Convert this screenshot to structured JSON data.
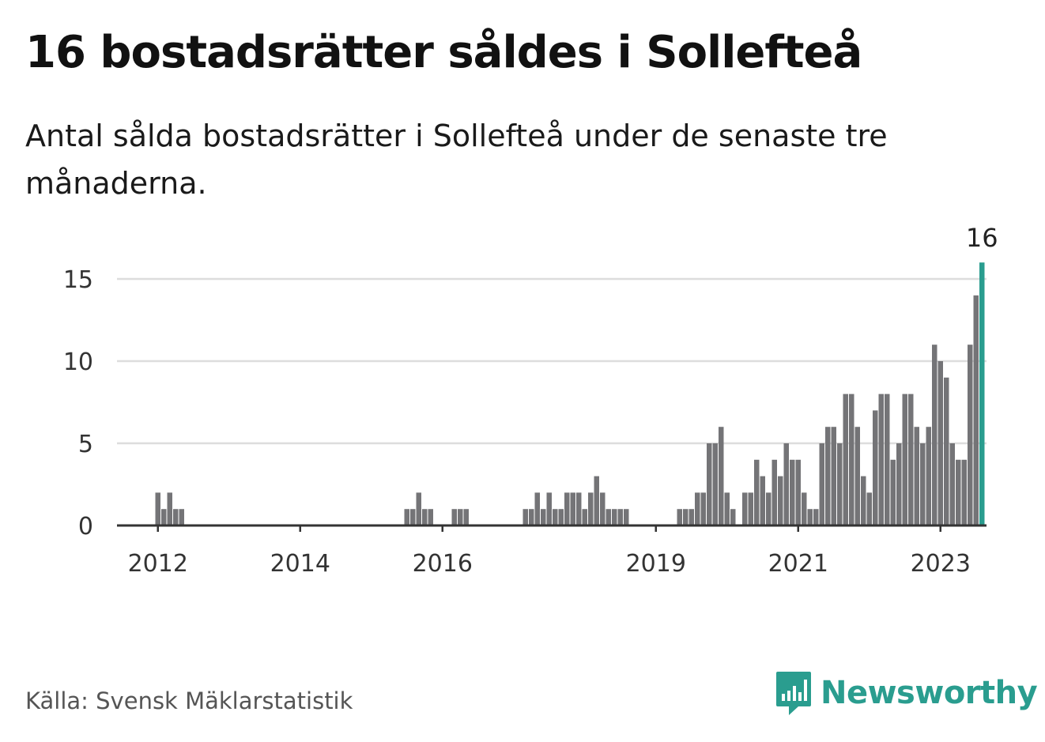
{
  "title": "16 bostadsrätter såldes i Sollefteå",
  "subtitle": "Antal sålda bostadsrätter i Sollefteå under de senaste tre månaderna.",
  "source": "Källa: Svensk Mäklarstatistik",
  "brand": {
    "name": "Newsworthy",
    "icon": "newsworthy-logo-icon",
    "color": "#2a9d8f"
  },
  "chart_data": {
    "type": "bar",
    "x_start": "2012-01",
    "y_ticks": [
      0,
      5,
      10,
      15
    ],
    "ylim": [
      0,
      17
    ],
    "x_tick_labels": [
      {
        "label": "2012",
        "month": "2012-01"
      },
      {
        "label": "2014",
        "month": "2014-01"
      },
      {
        "label": "2016",
        "month": "2016-01"
      },
      {
        "label": "2019",
        "month": "2019-01"
      },
      {
        "label": "2021",
        "month": "2021-01"
      },
      {
        "label": "2023",
        "month": "2023-01"
      }
    ],
    "grid": true,
    "bar_color": "#747477",
    "highlight_color": "#2a9d8f",
    "highlight_label": "16",
    "values": [
      2,
      1,
      2,
      1,
      1,
      0,
      0,
      0,
      0,
      0,
      0,
      0,
      0,
      0,
      0,
      0,
      0,
      0,
      0,
      0,
      0,
      0,
      0,
      0,
      0,
      0,
      0,
      0,
      0,
      0,
      0,
      0,
      0,
      0,
      0,
      0,
      0,
      0,
      0,
      0,
      0,
      0,
      1,
      1,
      2,
      1,
      1,
      0,
      0,
      0,
      1,
      1,
      1,
      0,
      0,
      0,
      0,
      0,
      0,
      0,
      0,
      0,
      1,
      1,
      2,
      1,
      2,
      1,
      1,
      2,
      2,
      2,
      1,
      2,
      3,
      2,
      1,
      1,
      1,
      1,
      0,
      0,
      0,
      0,
      0,
      0,
      0,
      0,
      1,
      1,
      1,
      2,
      2,
      5,
      5,
      6,
      2,
      1,
      0,
      2,
      2,
      4,
      3,
      2,
      4,
      3,
      5,
      4,
      4,
      2,
      1,
      1,
      5,
      6,
      6,
      5,
      8,
      8,
      6,
      3,
      2,
      7,
      8,
      8,
      4,
      5,
      8,
      8,
      6,
      5,
      6,
      11,
      10,
      9,
      5,
      4,
      4,
      11,
      14,
      16
    ]
  }
}
